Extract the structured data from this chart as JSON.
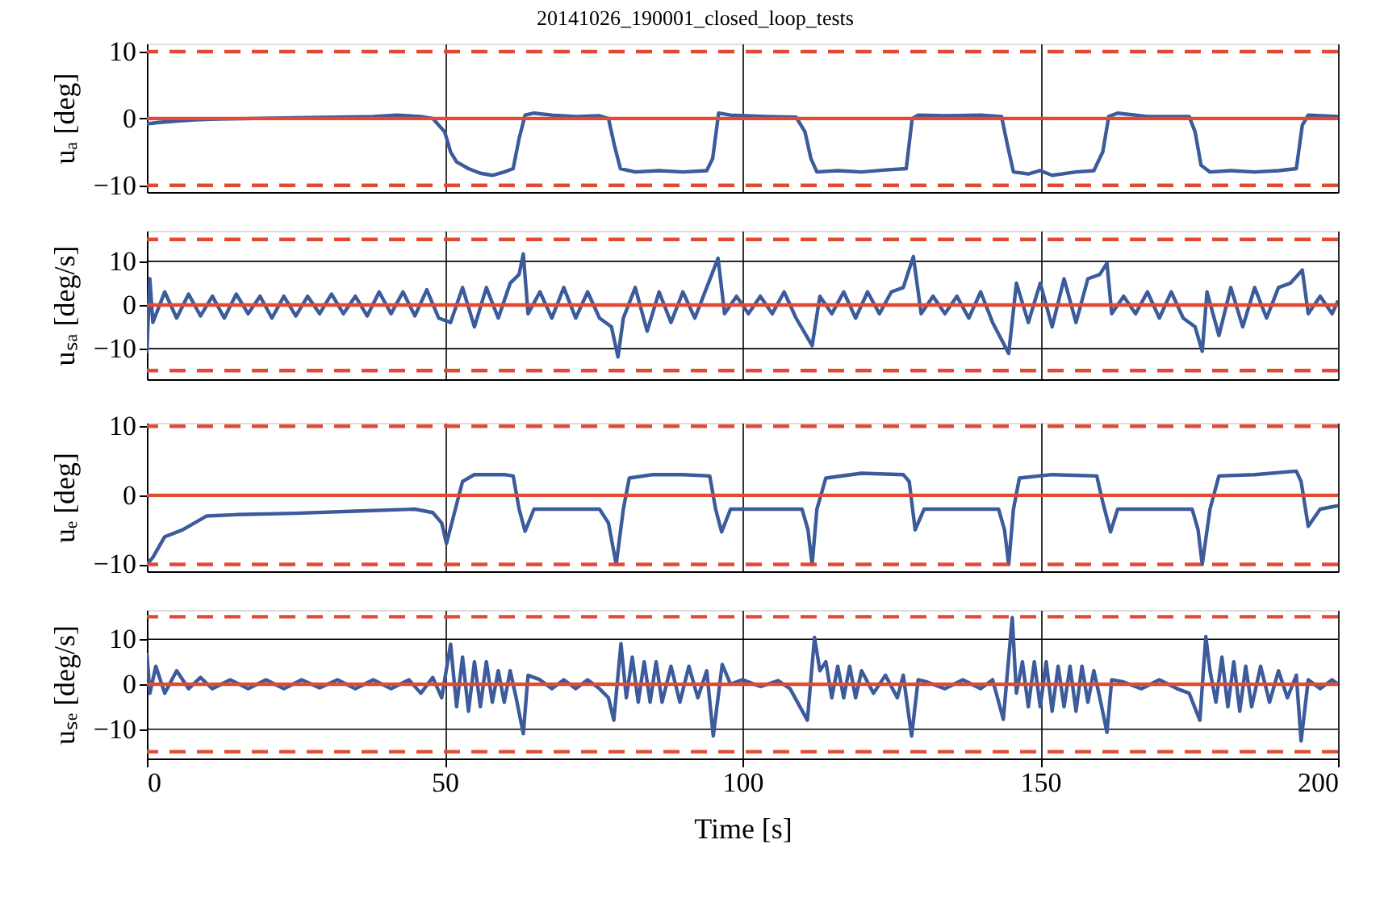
{
  "chart_data": [
    {
      "type": "line",
      "title": "20141026_190001_closed_loop_tests",
      "ylabel": "uₐ [deg]",
      "xlim": [
        0,
        200
      ],
      "xticks": [
        0,
        50,
        100,
        150,
        200
      ],
      "ylim": [
        -11,
        11.2
      ],
      "yticks": [
        -10,
        0,
        10
      ],
      "grid": true,
      "tick_labels": "y",
      "series": [
        {
          "color": "#3b5b9a",
          "x": [
            0,
            2,
            5,
            8,
            12,
            18,
            25,
            32,
            38,
            42,
            46,
            48,
            50,
            51,
            52,
            54,
            56,
            58,
            60,
            61.5,
            62.5,
            63.5,
            65,
            68,
            72,
            76,
            77.5,
            78.5,
            79.5,
            82,
            86,
            90,
            94,
            95,
            96,
            98,
            104,
            109,
            110.5,
            111.5,
            112.5,
            116,
            120,
            124,
            127.5,
            128.5,
            129.5,
            134,
            140,
            143.5,
            144.5,
            145.5,
            148,
            150,
            152,
            156,
            159,
            160.5,
            161.5,
            163,
            168,
            175,
            176,
            177,
            178.5,
            182,
            186,
            190,
            193,
            194,
            195,
            200
          ],
          "values": [
            -0.8,
            -0.6,
            -0.4,
            -0.2,
            -0.1,
            0,
            0.1,
            0.2,
            0.3,
            0.5,
            0.3,
            0,
            -2,
            -5,
            -6.5,
            -7.5,
            -8.2,
            -8.5,
            -8,
            -7.5,
            -3,
            0.5,
            0.8,
            0.5,
            0.3,
            0.4,
            0,
            -4,
            -7.5,
            -8,
            -7.8,
            -8,
            -7.8,
            -6,
            0.8,
            0.5,
            0.3,
            0.2,
            -2,
            -6,
            -8,
            -7.8,
            -8,
            -7.7,
            -7.5,
            0,
            0.5,
            0.4,
            0.5,
            0.3,
            -4,
            -8,
            -8.3,
            -7.8,
            -8.5,
            -8,
            -7.8,
            -5,
            0.3,
            0.8,
            0.3,
            0.3,
            -2,
            -7,
            -8,
            -7.8,
            -8,
            -7.8,
            -7.5,
            -1,
            0.5,
            0.3
          ]
        }
      ],
      "ref_lines": [
        {
          "axis": "y",
          "value": -10,
          "color": "#e24a33",
          "line_style": "dashed"
        },
        {
          "axis": "y",
          "value": 0,
          "color": "#e24a33",
          "line_style": "solid"
        },
        {
          "axis": "y",
          "value": 10,
          "color": "#e24a33",
          "line_style": "dashed"
        }
      ]
    },
    {
      "type": "line",
      "ylabel": "uₛₐ [deg/s]",
      "xlim": [
        0,
        200
      ],
      "xticks": [
        0,
        50,
        100,
        150,
        200
      ],
      "ylim": [
        -17,
        17
      ],
      "yticks": [
        -10,
        0,
        10
      ],
      "grid": true,
      "tick_labels": "y",
      "series": [
        {
          "color": "#3b5b9a",
          "x": [
            0,
            0.5,
            1,
            3,
            5,
            7,
            9,
            11,
            13,
            15,
            17,
            19,
            21,
            23,
            25,
            27,
            29,
            31,
            33,
            35,
            37,
            39,
            41,
            43,
            45,
            47,
            49,
            51,
            53,
            55,
            57,
            59,
            61,
            62.5,
            63.2,
            64,
            66,
            68,
            70,
            72,
            74,
            76,
            78,
            79.1,
            80,
            82,
            84,
            86,
            88,
            90,
            92,
            94,
            95.9,
            97,
            99,
            101,
            103,
            105,
            107,
            109,
            111.7,
            113,
            115,
            117,
            119,
            121,
            123,
            125,
            127,
            128.7,
            130,
            132,
            134,
            136,
            138,
            140,
            142,
            144.7,
            146,
            148,
            150,
            152,
            154,
            156,
            158,
            160,
            161.2,
            162,
            164,
            166,
            168,
            170,
            172,
            174,
            176,
            177.2,
            178,
            180,
            182,
            184,
            186,
            188,
            190,
            192,
            194,
            195,
            197,
            199,
            200
          ],
          "values": [
            -11,
            6,
            -4,
            3,
            -3,
            2.5,
            -2.5,
            2,
            -3,
            2.5,
            -2,
            2,
            -3,
            2,
            -2.5,
            2,
            -2,
            2.5,
            -2,
            2,
            -2.5,
            3,
            -2,
            3,
            -2.5,
            3.5,
            -3,
            -4,
            4,
            -5,
            4,
            -3,
            5,
            7,
            11.7,
            -2,
            3,
            -3,
            4,
            -3,
            3,
            -3,
            -5,
            -11.9,
            -3,
            4,
            -6,
            3,
            -4,
            3,
            -3,
            4,
            10.7,
            -2,
            2,
            -2,
            2,
            -2,
            3,
            -3,
            -9.3,
            2,
            -2,
            3,
            -3,
            3,
            -2,
            3,
            4,
            11.1,
            -2,
            2,
            -2,
            2,
            -3,
            3,
            -4,
            -11.1,
            5,
            -4,
            5,
            -5,
            6,
            -4,
            6,
            7,
            9.6,
            -2,
            2,
            -2,
            3,
            -3,
            3,
            -3,
            -5,
            -10.6,
            3,
            -7,
            4,
            -5,
            4,
            -3,
            4,
            5,
            8,
            -2,
            2,
            -2,
            1
          ]
        }
      ],
      "ref_lines": [
        {
          "axis": "y",
          "value": -15,
          "color": "#e24a33",
          "line_style": "dashed"
        },
        {
          "axis": "y",
          "value": 0,
          "color": "#e24a33",
          "line_style": "solid"
        },
        {
          "axis": "y",
          "value": 15,
          "color": "#e24a33",
          "line_style": "dashed"
        }
      ]
    },
    {
      "type": "line",
      "ylabel": "uₑ [deg]",
      "xlim": [
        0,
        200
      ],
      "xticks": [
        0,
        50,
        100,
        150,
        200
      ],
      "ylim": [
        -11,
        10.5
      ],
      "yticks": [
        -10,
        0,
        10
      ],
      "grid": true,
      "tick_labels": "y",
      "series": [
        {
          "color": "#3b5b9a",
          "x": [
            0,
            1,
            3,
            6,
            10,
            15,
            25,
            35,
            45,
            48,
            49.5,
            50.3,
            51.5,
            53,
            55,
            60,
            61.5,
            62.5,
            63.5,
            65,
            70,
            76,
            77.5,
            78.8,
            80,
            81,
            85,
            90,
            94.5,
            95.5,
            96.5,
            98,
            105,
            110,
            111,
            111.7,
            112.5,
            114,
            120,
            127,
            128,
            129,
            130.5,
            136,
            143,
            144,
            144.7,
            145.5,
            146.5,
            152,
            159.5,
            160.5,
            161.8,
            163,
            170,
            175.5,
            176.5,
            177.2,
            178.5,
            180,
            186,
            193,
            193.8,
            195,
            197,
            200
          ],
          "values": [
            -10,
            -9,
            -6,
            -5,
            -3,
            -2.8,
            -2.6,
            -2.3,
            -2,
            -2.5,
            -4,
            -7,
            -3,
            2,
            3,
            3,
            2.8,
            -2,
            -5.2,
            -2,
            -2,
            -2,
            -4,
            -10,
            -2,
            2.5,
            3,
            3,
            2.8,
            -2,
            -5.3,
            -2,
            -2,
            -2,
            -5,
            -10,
            -2,
            2.5,
            3.2,
            3,
            2,
            -5,
            -2,
            -2,
            -2,
            -5,
            -10,
            -2,
            2.5,
            3,
            2.8,
            -1,
            -5.3,
            -2,
            -2,
            -2,
            -5,
            -10,
            -2,
            2.8,
            3,
            3.5,
            2,
            -4.5,
            -2,
            -1.5
          ]
        }
      ],
      "ref_lines": [
        {
          "axis": "y",
          "value": -10,
          "color": "#e24a33",
          "line_style": "dashed"
        },
        {
          "axis": "y",
          "value": 0,
          "color": "#e24a33",
          "line_style": "solid"
        },
        {
          "axis": "y",
          "value": 10,
          "color": "#e24a33",
          "line_style": "dashed"
        }
      ]
    },
    {
      "type": "line",
      "ylabel": "uₛₑ [deg/s]",
      "xlabel": "Time [s]",
      "xlim": [
        0,
        200
      ],
      "xticks": [
        0,
        50,
        100,
        150,
        200
      ],
      "ylim": [
        -16.5,
        16.5
      ],
      "yticks": [
        -10,
        0,
        10
      ],
      "grid": true,
      "series": [
        {
          "color": "#3b5b9a",
          "x": [
            0,
            0.5,
            1.5,
            3,
            5,
            7,
            9,
            11,
            14,
            17,
            20,
            23,
            26,
            29,
            32,
            35,
            38,
            41,
            44,
            46,
            48,
            49.5,
            51,
            52,
            53,
            54,
            55,
            56,
            57,
            58,
            59,
            60,
            61,
            62,
            63.2,
            64,
            66,
            68,
            70,
            72,
            74,
            76,
            77.5,
            78.4,
            79.6,
            80.5,
            81.5,
            82.5,
            83.5,
            84.5,
            85.5,
            86.5,
            88,
            89.5,
            91,
            92.5,
            94,
            95.1,
            96.6,
            98,
            100,
            103,
            106,
            108,
            110.9,
            112.1,
            113,
            114,
            115,
            116,
            117,
            118,
            119,
            120,
            122,
            124,
            126,
            127,
            128.4,
            129.5,
            131,
            134,
            137,
            140,
            142,
            143.8,
            145.3,
            146,
            147,
            148,
            149,
            150,
            151,
            152,
            153,
            154,
            155,
            156,
            157,
            158,
            159,
            160,
            161.2,
            162,
            164,
            167,
            170,
            173,
            175,
            176.8,
            177.8,
            178.5,
            179.5,
            180.5,
            181.5,
            182.5,
            183.5,
            184.5,
            185.5,
            187,
            188.5,
            190,
            191.5,
            193,
            193.8,
            195,
            197,
            199,
            200
          ],
          "values": [
            7,
            -2,
            4,
            -2,
            3,
            -1,
            1.5,
            -1,
            1,
            -1,
            1,
            -1,
            1,
            -0.8,
            1,
            -1,
            1,
            -1,
            1,
            -2,
            1.5,
            -3,
            8.9,
            -5,
            6,
            -6,
            5,
            -5,
            5,
            -4,
            3,
            -4,
            3,
            -3,
            -11,
            2,
            1,
            -1,
            1,
            -1,
            1,
            -1,
            -3,
            -8,
            9,
            -3,
            6,
            -4,
            5,
            -4,
            5,
            -4,
            4,
            -4,
            4,
            -3,
            3,
            -11.5,
            4.4,
            0,
            1,
            -0.5,
            0.8,
            -1,
            -8,
            10.4,
            3,
            5,
            -3,
            4,
            -3,
            4,
            -3,
            3,
            -2,
            2,
            -3,
            2,
            -11.5,
            1,
            0.5,
            -1,
            1,
            -1,
            1,
            -7.8,
            14.8,
            -2,
            5,
            -5,
            5,
            -5,
            5,
            -6,
            4,
            -5,
            4,
            -6,
            4,
            -4,
            3,
            -3,
            -10.7,
            1,
            0.5,
            -1,
            1,
            -1,
            -2,
            -8,
            10.6,
            3,
            -4,
            6,
            -5,
            5,
            -6,
            4,
            -5,
            4,
            -4,
            3,
            -3,
            2,
            -12.6,
            1,
            -1,
            1,
            0
          ]
        }
      ],
      "ref_lines": [
        {
          "axis": "y",
          "value": -15,
          "color": "#e24a33",
          "line_style": "dashed"
        },
        {
          "axis": "y",
          "value": 0,
          "color": "#e24a33",
          "line_style": "solid"
        },
        {
          "axis": "y",
          "value": 15,
          "color": "#e24a33",
          "line_style": "dashed"
        }
      ]
    }
  ]
}
